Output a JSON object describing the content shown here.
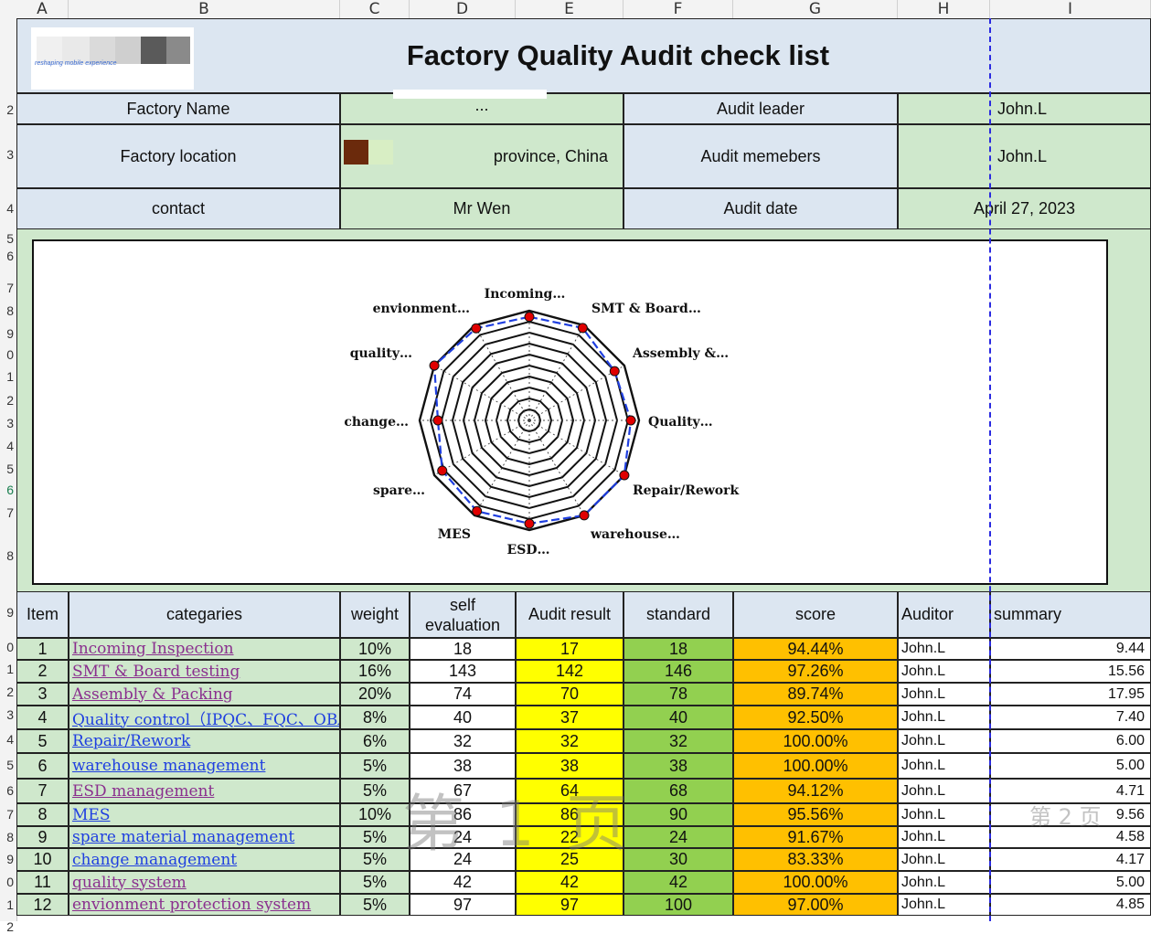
{
  "columns": [
    "A",
    "B",
    "C",
    "D",
    "E",
    "F",
    "G",
    "H",
    "I"
  ],
  "rows": [
    "2",
    "3",
    "4",
    "5",
    "6",
    "7",
    "8",
    "9",
    "0",
    "1",
    "2",
    "3",
    "4",
    "5",
    "6",
    "7",
    "8",
    "9",
    "0",
    "1",
    "2",
    "3",
    "4",
    "5",
    "6",
    "7",
    "8",
    "9",
    "0",
    "1",
    "2"
  ],
  "header": {
    "title": "Factory Quality Audit check list",
    "logo_tagline": "reshaping mobile experience"
  },
  "info": {
    "factory_name_label": "Factory Name",
    "factory_name_value": "...",
    "audit_leader_label": "Audit leader",
    "audit_leader_value": "John.L",
    "factory_location_label": "Factory location",
    "factory_location_value": "province, China",
    "audit_members_label": "Audit memebers",
    "audit_members_value": "John.L",
    "contact_label": "contact",
    "contact_value": "Mr Wen",
    "audit_date_label": "Audit date",
    "audit_date_value": "April 27, 2023"
  },
  "table": {
    "headers": {
      "item": "Item",
      "categories": "categaries",
      "weight": "weight",
      "self_eval_1": "self",
      "self_eval_2": "evaluation",
      "audit_result": "Audit result",
      "standard": "standard",
      "score": "score",
      "auditor": "Auditor",
      "summary": "summary"
    },
    "rows": [
      {
        "item": "1",
        "category": "Incoming Inspection",
        "link": "visited",
        "weight": "10%",
        "self": "18",
        "result": "17",
        "standard": "18",
        "score": "94.44%",
        "auditor": "John.L",
        "summary": "9.44"
      },
      {
        "item": "2",
        "category": "SMT & Board testing",
        "link": "visited",
        "weight": "16%",
        "self": "143",
        "result": "142",
        "standard": "146",
        "score": "97.26%",
        "auditor": "John.L",
        "summary": "15.56"
      },
      {
        "item": "3",
        "category": "Assembly & Packing",
        "link": "visited",
        "weight": "20%",
        "self": "74",
        "result": "70",
        "standard": "78",
        "score": "89.74%",
        "auditor": "John.L",
        "summary": "17.95"
      },
      {
        "item": "4",
        "category": "Quality control（IPQC、FQC、OBA、",
        "link": "link",
        "weight": "8%",
        "self": "40",
        "result": "37",
        "standard": "40",
        "score": "92.50%",
        "auditor": "John.L",
        "summary": "7.40"
      },
      {
        "item": "5",
        "category": "Repair/Rework",
        "link": "link",
        "weight": "6%",
        "self": "32",
        "result": "32",
        "standard": "32",
        "score": "100.00%",
        "auditor": "John.L",
        "summary": "6.00"
      },
      {
        "item": "6",
        "category": "warehouse management",
        "link": "link",
        "weight": "5%",
        "self": "38",
        "result": "38",
        "standard": "38",
        "score": "100.00%",
        "auditor": "John.L",
        "summary": "5.00"
      },
      {
        "item": "7",
        "category": "ESD management",
        "link": "visited",
        "weight": "5%",
        "self": "67",
        "result": "64",
        "standard": "68",
        "score": "94.12%",
        "auditor": "John.L",
        "summary": "4.71"
      },
      {
        "item": "8",
        "category": "MES",
        "link": "link",
        "weight": "10%",
        "self": "86",
        "result": "86",
        "standard": "90",
        "score": "95.56%",
        "auditor": "John.L",
        "summary": "9.56"
      },
      {
        "item": "9",
        "category": "spare material management",
        "link": "link",
        "weight": "5%",
        "self": "24",
        "result": "22",
        "standard": "24",
        "score": "91.67%",
        "auditor": "John.L",
        "summary": "4.58"
      },
      {
        "item": "10",
        "category": "change management",
        "link": "link",
        "weight": "5%",
        "self": "24",
        "result": "25",
        "standard": "30",
        "score": "83.33%",
        "auditor": "John.L",
        "summary": "4.17"
      },
      {
        "item": "11",
        "category": "quality system",
        "link": "visited",
        "weight": "5%",
        "self": "42",
        "result": "42",
        "standard": "42",
        "score": "100.00%",
        "auditor": "John.L",
        "summary": "5.00"
      },
      {
        "item": "12",
        "category": "envionment protection system",
        "link": "visited",
        "weight": "5%",
        "self": "97",
        "result": "97",
        "standard": "100",
        "score": "97.00%",
        "auditor": "John.L",
        "summary": "4.85"
      }
    ]
  },
  "watermarks": {
    "page1": "第 1 页",
    "page2": "第 2 页"
  },
  "chart_data": {
    "type": "radar",
    "categories": [
      "Incoming…",
      "SMT & Board…",
      "Assembly &…",
      "Quality…",
      "Repair/Rework",
      "warehouse…",
      "ESD…",
      "MES",
      "spare…",
      "change…",
      "quality…",
      "envionment…"
    ],
    "series": [
      {
        "values": [
          94.44,
          97.26,
          89.74,
          92.5,
          100,
          100,
          94.12,
          95.56,
          91.67,
          83.33,
          100,
          97.0
        ]
      }
    ],
    "ylim": [
      0,
      100
    ],
    "rings": 10,
    "colors": {
      "line": "#1f3fe0",
      "marker": "#e00000",
      "grid": "#111111"
    }
  }
}
